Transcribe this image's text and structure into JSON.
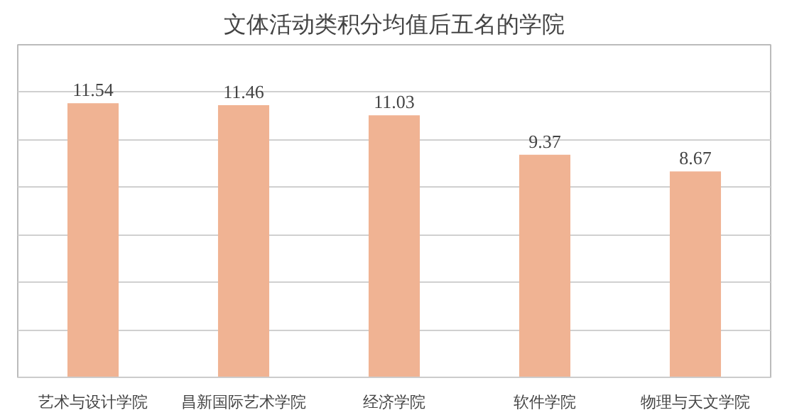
{
  "chart_data": {
    "type": "bar",
    "title": "文体活动类积分均值后五名的学院",
    "categories": [
      "艺术与设计学院",
      "昌新国际艺术学院",
      "经济学院",
      "软件学院",
      "物理与天文学院"
    ],
    "values": [
      11.54,
      11.46,
      11.03,
      9.37,
      8.67
    ],
    "color": "#f0b393",
    "ylim": [
      0,
      14
    ],
    "yticks": [
      {
        "value": 0,
        "label": null
      },
      {
        "value": 2,
        "label": null
      },
      {
        "value": 4,
        "label": null
      },
      {
        "value": 6,
        "label": null
      },
      {
        "value": 8,
        "label": null
      },
      {
        "value": 10,
        "label": null
      },
      {
        "value": 12,
        "label": null
      },
      {
        "value": 14,
        "label": null
      }
    ],
    "grid": "y",
    "data_labels": true,
    "tick_labels": "x"
  }
}
